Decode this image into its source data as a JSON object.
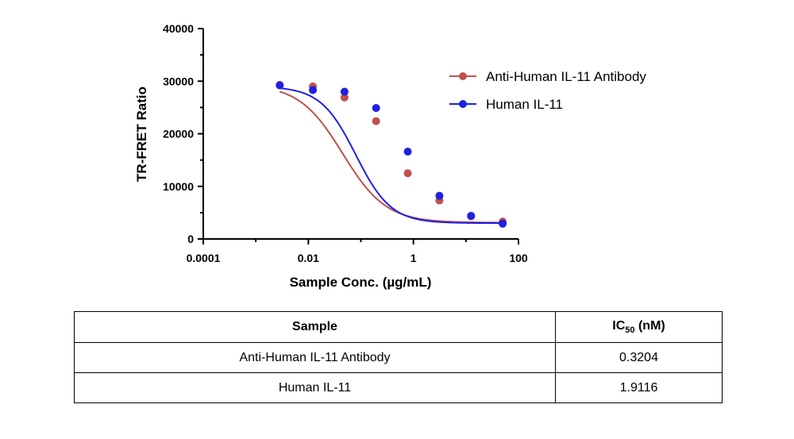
{
  "chart_data": {
    "type": "scatter",
    "title": "",
    "xlabel": "Sample Conc. (µg/mL)",
    "ylabel": "TR-FRET Ratio",
    "xscale": "log",
    "xlim": [
      0.0001,
      100
    ],
    "ylim": [
      0,
      40000
    ],
    "xticks": [
      0.0001,
      0.01,
      1,
      100
    ],
    "xtick_labels": [
      "0.0001",
      "0.01",
      "1",
      "100"
    ],
    "yticks": [
      0,
      10000,
      20000,
      30000,
      40000
    ],
    "ytick_labels": [
      "0",
      "10000",
      "20000",
      "30000",
      "40000"
    ],
    "grid": false,
    "legend_position": "right",
    "series": [
      {
        "name": "Anti-Human IL-11 Antibody",
        "color": "#c0504d",
        "x": [
          0.00286,
          0.0122,
          0.0488,
          0.195,
          0.781,
          3.125,
          12.5,
          50
        ],
        "y": [
          29300,
          29000,
          26900,
          22400,
          12500,
          7300,
          4300,
          3300
        ],
        "x_points": [
          0.00286,
          0.0122,
          0.0488,
          0.195,
          0.781,
          3.125,
          12.5,
          50
        ],
        "y_points": [
          29300,
          29000,
          26900,
          22400,
          12500,
          7300,
          4300,
          3300
        ],
        "fit": {
          "top": 29400,
          "bottom": 3100,
          "ic50": 0.045,
          "hill": 1.05
        }
      },
      {
        "name": "Human IL-11",
        "color": "#1f1fe6",
        "x": [
          0.00286,
          0.0122,
          0.0488,
          0.195,
          0.781,
          3.125,
          12.5,
          50
        ],
        "y": [
          29200,
          28300,
          28000,
          24900,
          16600,
          8200,
          4400,
          2900
        ],
        "x_points": [
          0.00286,
          0.0122,
          0.0488,
          0.195,
          0.781,
          3.125,
          12.5,
          50
        ],
        "y_points": [
          29200,
          28300,
          28000,
          24900,
          16600,
          8200,
          4400,
          2900
        ],
        "fit": {
          "top": 29000,
          "bottom": 3000,
          "ic50": 0.08,
          "hill": 1.3
        }
      }
    ]
  },
  "table": {
    "headers": {
      "sample": "Sample",
      "ic50_base": "IC",
      "ic50_sub": "50",
      "ic50_unit": " (nM)"
    },
    "rows": [
      {
        "sample": "Anti-Human IL-11 Antibody",
        "ic50": "0.3204"
      },
      {
        "sample": "Human IL-11",
        "ic50": "1.9116"
      }
    ]
  }
}
